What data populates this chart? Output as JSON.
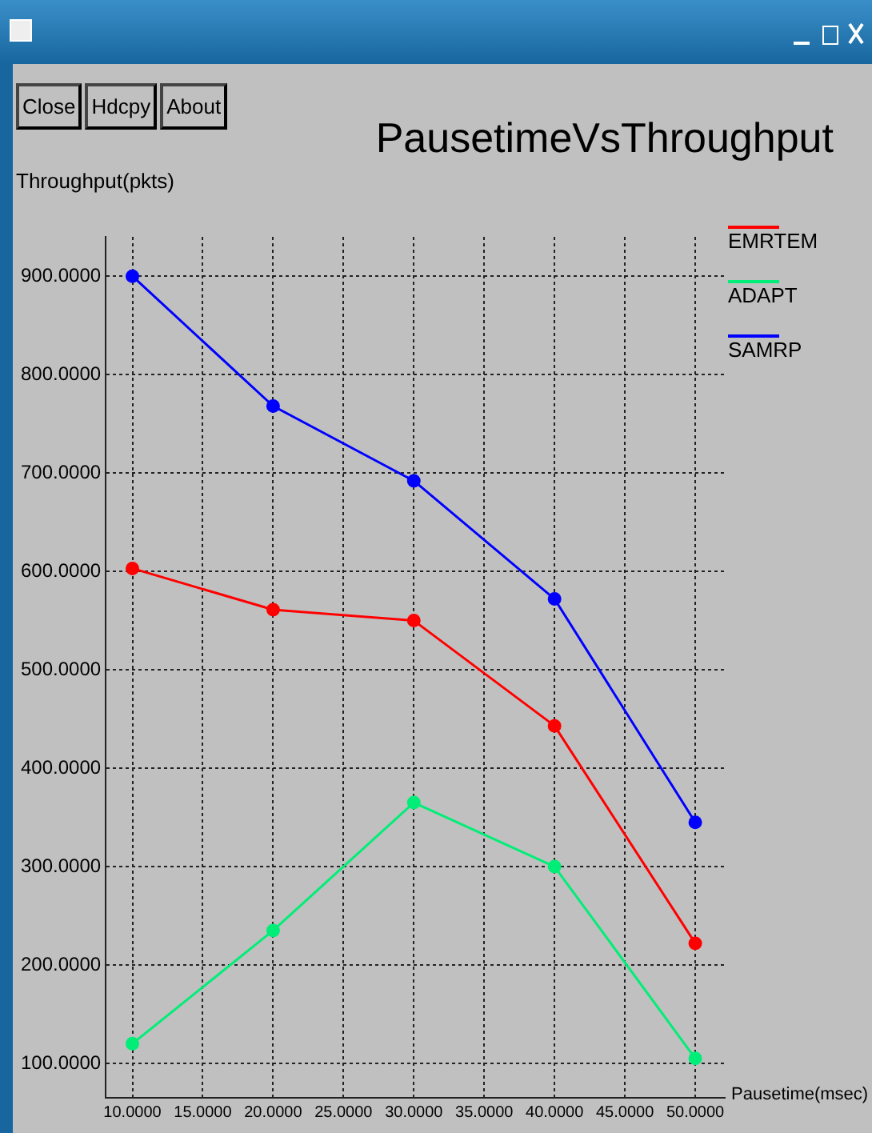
{
  "chart_data": {
    "type": "line",
    "title": "PausetimeVsThroughput",
    "xlabel": "Pausetime(msec)",
    "ylabel": "Throughput(pkts)",
    "annotations": [
      "Close",
      "Hdcpy",
      "About"
    ],
    "x": [
      10,
      20,
      30,
      40,
      50
    ],
    "series": [
      {
        "name": "EMRTEM",
        "color": "#ff0000",
        "values": [
          603,
          561,
          550,
          443,
          222
        ]
      },
      {
        "name": "ADAPT",
        "color": "#00ee77",
        "values": [
          120,
          235,
          365,
          300,
          105
        ]
      },
      {
        "name": "SAMRP",
        "color": "#0000ff",
        "values": [
          900,
          768,
          692,
          572,
          345
        ]
      }
    ],
    "xlim": [
      8.1,
      52.1
    ],
    "xticks": [
      {
        "value": 10,
        "label": "10.0000"
      },
      {
        "value": 15,
        "label": "15.0000"
      },
      {
        "value": 20,
        "label": "20.0000"
      },
      {
        "value": 25,
        "label": "25.0000"
      },
      {
        "value": 30,
        "label": "30.0000"
      },
      {
        "value": 35,
        "label": "35.0000"
      },
      {
        "value": 40,
        "label": "40.0000"
      },
      {
        "value": 45,
        "label": "45.0000"
      },
      {
        "value": 50,
        "label": "50.0000"
      }
    ],
    "ylim": [
      65,
      940
    ],
    "yticks": [
      {
        "value": 100,
        "label": "100.0000"
      },
      {
        "value": 200,
        "label": "200.0000"
      },
      {
        "value": 300,
        "label": "300.0000"
      },
      {
        "value": 400,
        "label": "400.0000"
      },
      {
        "value": 500,
        "label": "500.0000"
      },
      {
        "value": 600,
        "label": "600.0000"
      },
      {
        "value": 700,
        "label": "700.0000"
      },
      {
        "value": 800,
        "label": "800.0000"
      },
      {
        "value": 900,
        "label": "900.0000"
      }
    ],
    "grid": true,
    "legend": "top right",
    "marker": "circle",
    "line_style": "solid"
  }
}
